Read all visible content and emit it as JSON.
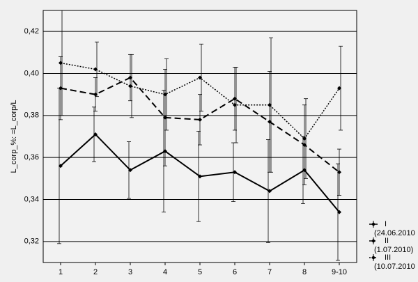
{
  "chart_data": {
    "type": "line",
    "ylabel": "L_corp_%: =L_corp/L",
    "categories": [
      "1",
      "2",
      "3",
      "4",
      "5",
      "6",
      "7",
      "8",
      "9-10"
    ],
    "ylim": [
      0.31,
      0.43
    ],
    "yticks": [
      {
        "value": 0.32,
        "label": "0,32"
      },
      {
        "value": 0.34,
        "label": "0,34"
      },
      {
        "value": 0.36,
        "label": "0,36"
      },
      {
        "value": 0.38,
        "label": "0,38"
      },
      {
        "value": 0.4,
        "label": "0,40"
      },
      {
        "value": 0.42,
        "label": "0,42"
      }
    ],
    "grid": true,
    "legend": "bottom-right",
    "series": [
      {
        "name": "I",
        "legend_note": "(24.06.2010",
        "color": "#000000",
        "line_style": "solid",
        "values": [
          0.356,
          0.371,
          0.354,
          0.363,
          0.351,
          0.353,
          0.344,
          0.354,
          0.334
        ],
        "errors": [
          0.037,
          0.013,
          0.0135,
          0.029,
          0.0215,
          0.014,
          0.0245,
          0.016,
          0.023
        ]
      },
      {
        "name": "II",
        "legend_note": "(1.07.2010)",
        "color": "#000000",
        "line_style": "dashed",
        "values": [
          0.393,
          0.39,
          0.398,
          0.379,
          0.378,
          0.388,
          0.377,
          0.366,
          0.353
        ],
        "errors": [
          0.015,
          0.008,
          0.011,
          0.023,
          0.012,
          0.015,
          0.024,
          0.019,
          0.011
        ]
      },
      {
        "name": "III",
        "legend_note": "(10.07.2010",
        "color": "#000000",
        "line_style": "dotted",
        "values": [
          0.405,
          0.402,
          0.394,
          0.39,
          0.398,
          0.385,
          0.385,
          0.369,
          0.393
        ],
        "errors": [
          0.025,
          0.013,
          0.015,
          0.017,
          0.016,
          0.018,
          0.032,
          0.019,
          0.02
        ]
      }
    ]
  }
}
